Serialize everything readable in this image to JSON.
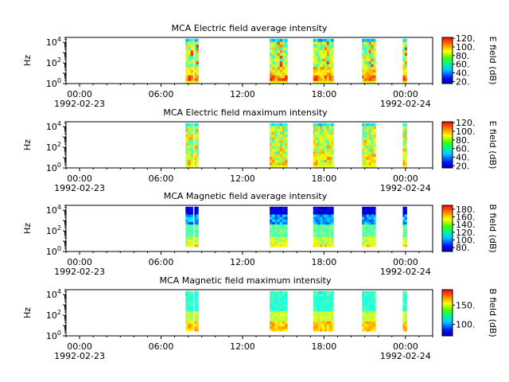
{
  "x_axis": {
    "range_hours": [
      -1,
      26
    ],
    "ticks": [
      {
        "hour": 0,
        "time": "00:00",
        "date": "1992-02-23"
      },
      {
        "hour": 6,
        "time": "06:00",
        "date": ""
      },
      {
        "hour": 12,
        "time": "12:00",
        "date": ""
      },
      {
        "hour": 18,
        "time": "18:00",
        "date": ""
      },
      {
        "hour": 24,
        "time": "00:00",
        "date": "1992-02-24"
      }
    ]
  },
  "chart_data": [
    {
      "type": "heatmap",
      "title": "MCA  Electric field average intensity",
      "ylabel": "Hz",
      "yscale": "log",
      "ylim": [
        1,
        30000
      ],
      "y_ticks": [
        {
          "exp": "0",
          "value": 1
        },
        {
          "exp": "2",
          "value": 100
        },
        {
          "exp": "4",
          "value": 10000
        }
      ],
      "colorbar": {
        "label": "E field (dB)",
        "range": [
          15,
          122
        ],
        "ticks": [
          20,
          40,
          60,
          80,
          100,
          120
        ],
        "tick_labels": [
          "20.",
          "40.",
          "60.",
          "80.",
          "100.",
          "120."
        ]
      },
      "data_intervals_hours": [
        [
          7.8,
          8.35
        ],
        [
          8.45,
          8.75
        ],
        [
          14.0,
          15.3
        ],
        [
          17.2,
          18.7
        ],
        [
          20.8,
          21.8
        ],
        [
          23.8,
          24.1
        ]
      ],
      "pattern": "avg-e"
    },
    {
      "type": "heatmap",
      "title": "MCA  Electric field maximum intensity",
      "ylabel": "Hz",
      "yscale": "log",
      "ylim": [
        1,
        30000
      ],
      "y_ticks": [
        {
          "exp": "0",
          "value": 1
        },
        {
          "exp": "2",
          "value": 100
        },
        {
          "exp": "4",
          "value": 10000
        }
      ],
      "colorbar": {
        "label": "E field (dB)",
        "range": [
          15,
          122
        ],
        "ticks": [
          20,
          40,
          60,
          80,
          100,
          120
        ],
        "tick_labels": [
          "20.",
          "40.",
          "60.",
          "80.",
          "100.",
          "120."
        ]
      },
      "data_intervals_hours": [
        [
          7.8,
          8.35
        ],
        [
          8.45,
          8.75
        ],
        [
          14.0,
          15.3
        ],
        [
          17.2,
          18.7
        ],
        [
          20.8,
          21.8
        ],
        [
          23.8,
          24.1
        ]
      ],
      "pattern": "max-e"
    },
    {
      "type": "heatmap",
      "title": "MCA  Magnetic field average intensity",
      "ylabel": "Hz",
      "yscale": "log",
      "ylim": [
        1,
        30000
      ],
      "y_ticks": [
        {
          "exp": "0",
          "value": 1
        },
        {
          "exp": "2",
          "value": 100
        },
        {
          "exp": "4",
          "value": 10000
        }
      ],
      "colorbar": {
        "label": "B field (dB)",
        "range": [
          70,
          190
        ],
        "ticks": [
          80,
          100,
          120,
          140,
          160,
          180
        ],
        "tick_labels": [
          "80.",
          "100.",
          "120.",
          "140.",
          "160.",
          "180."
        ]
      },
      "data_intervals_hours": [
        [
          7.8,
          8.35
        ],
        [
          8.45,
          8.75
        ],
        [
          14.0,
          15.3
        ],
        [
          17.2,
          18.7
        ],
        [
          20.8,
          21.8
        ],
        [
          23.8,
          24.1
        ]
      ],
      "pattern": "avg-b"
    },
    {
      "type": "heatmap",
      "title": "MCA  Magnetic field maximum intensity",
      "ylabel": "Hz",
      "yscale": "log",
      "ylim": [
        1,
        30000
      ],
      "y_ticks": [
        {
          "exp": "0",
          "value": 1
        },
        {
          "exp": "2",
          "value": 100
        },
        {
          "exp": "4",
          "value": 10000
        }
      ],
      "colorbar": {
        "label": "B field (dB)",
        "range": [
          70,
          190
        ],
        "ticks": [
          100,
          150
        ],
        "tick_labels": [
          "100.",
          "150."
        ]
      },
      "data_intervals_hours": [
        [
          7.8,
          8.35
        ],
        [
          8.45,
          8.75
        ],
        [
          14.0,
          15.3
        ],
        [
          17.2,
          18.7
        ],
        [
          20.8,
          21.8
        ],
        [
          23.8,
          24.1
        ]
      ],
      "pattern": "max-b"
    }
  ]
}
